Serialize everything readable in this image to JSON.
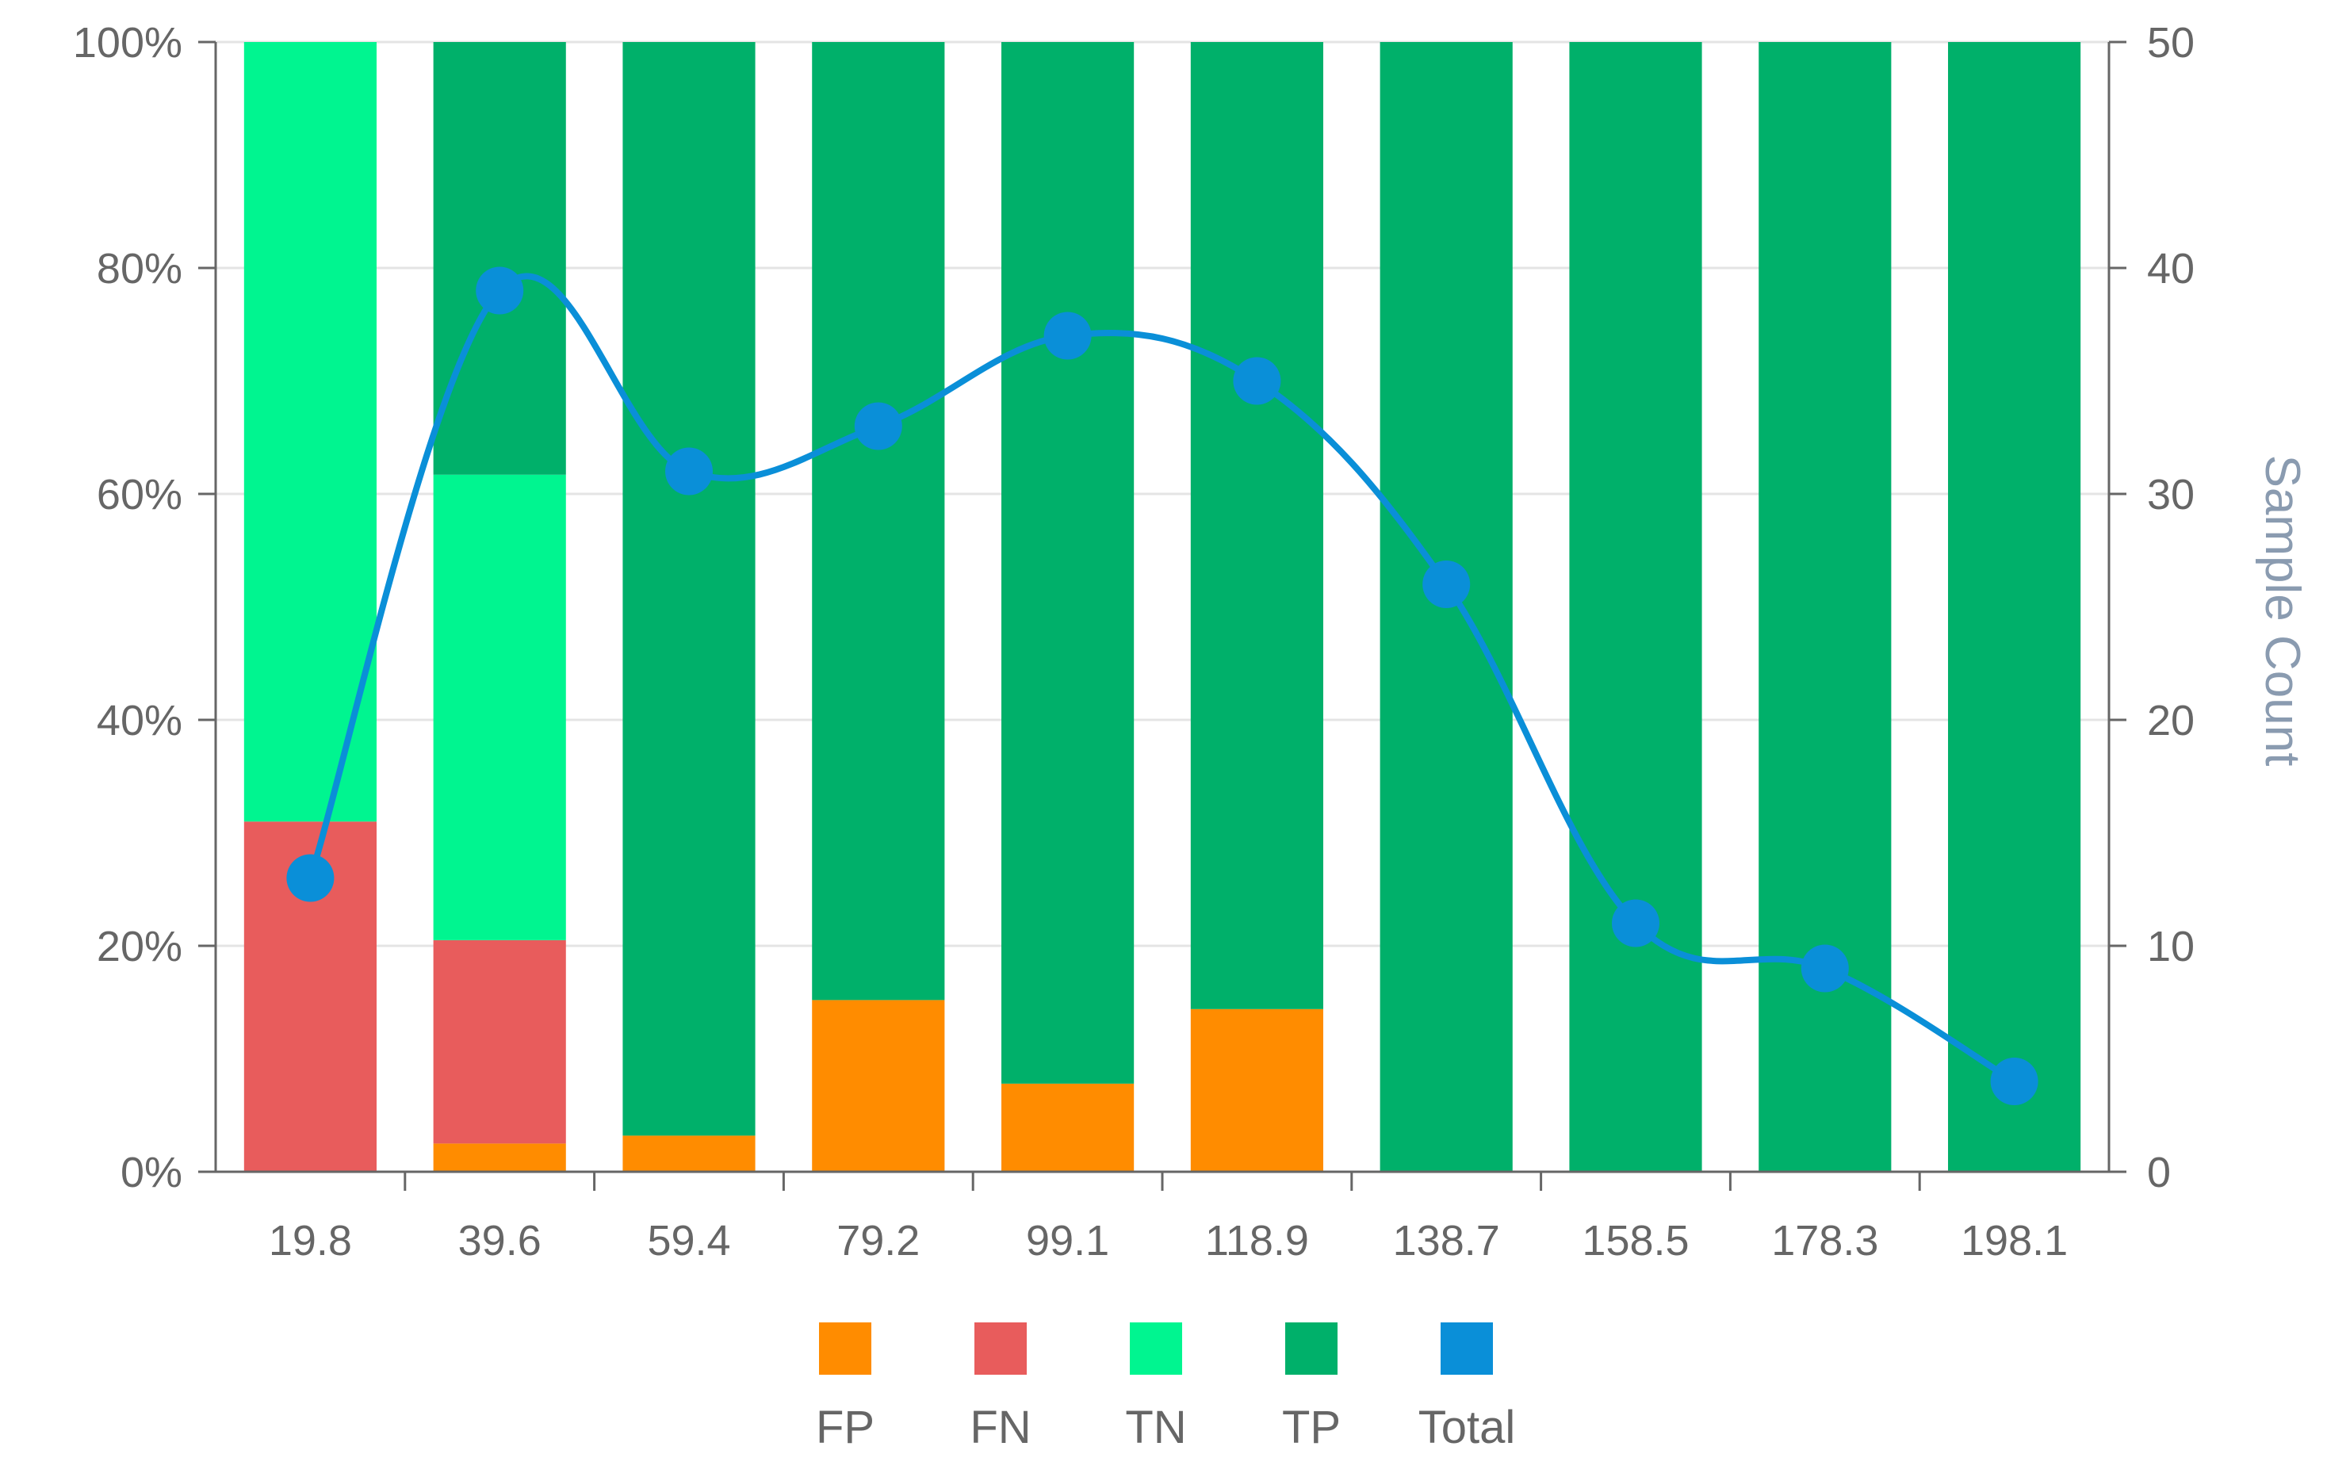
{
  "chart_data": {
    "type": "bar",
    "stacked": true,
    "categories": [
      "19.8",
      "39.6",
      "59.4",
      "79.2",
      "99.1",
      "118.9",
      "138.7",
      "158.5",
      "178.3",
      "198.1"
    ],
    "series": [
      {
        "name": "FP",
        "color": "#ff8c00",
        "axis": "left",
        "values": [
          0,
          2.5,
          3.2,
          15.2,
          7.8,
          14.4,
          0,
          0,
          0,
          0
        ]
      },
      {
        "name": "FN",
        "color": "#e85c5c",
        "axis": "left",
        "values": [
          31,
          18,
          0,
          0,
          0,
          0,
          0,
          0,
          0,
          0
        ]
      },
      {
        "name": "TN",
        "color": "#00f590",
        "axis": "left",
        "values": [
          69,
          41.2,
          0,
          0,
          0,
          0,
          0,
          0,
          0,
          0
        ]
      },
      {
        "name": "TP",
        "color": "#00b06a",
        "axis": "left",
        "values": [
          0,
          38.3,
          96.8,
          84.8,
          92.2,
          85.6,
          100,
          100,
          100,
          100
        ]
      },
      {
        "name": "Total",
        "type": "line",
        "color": "#0a8fd8",
        "axis": "right",
        "values": [
          13,
          39,
          31,
          33,
          37,
          35,
          26,
          11,
          9,
          4
        ]
      }
    ],
    "yaxis_left": {
      "ylim": [
        0,
        100
      ],
      "ticks": [
        "0%",
        "20%",
        "40%",
        "60%",
        "80%",
        "100%"
      ]
    },
    "yaxis_right": {
      "ylim": [
        0,
        50
      ],
      "ticks": [
        "0",
        "10",
        "20",
        "30",
        "40",
        "50"
      ],
      "label": "Sample Count"
    },
    "grid": true,
    "legend_position": "bottom"
  }
}
